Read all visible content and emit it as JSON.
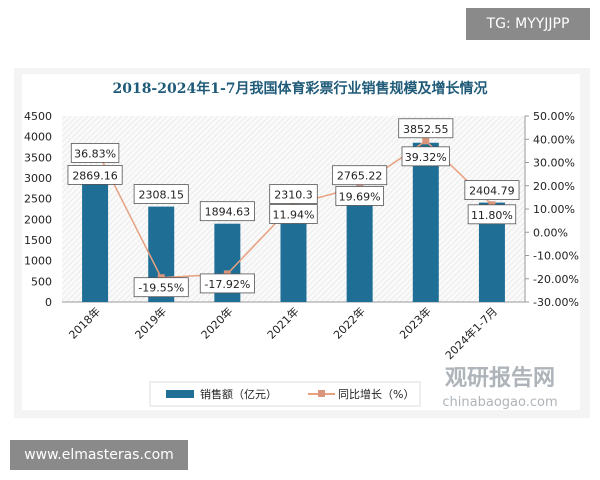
{
  "watermark_top": "TG: MYYJJPP",
  "watermark_bottom": "www.elmasteras.com",
  "logo_text": "观研报告网",
  "logo_sub": "chinabaogao.com",
  "chart_data": {
    "type": "bar+line",
    "title": "2018-2024年1-7月我国体育彩票行业销售规模及增长情况",
    "categories": [
      "2018年",
      "2019年",
      "2020年",
      "2021年",
      "2022年",
      "2023年",
      "2024年1-7月"
    ],
    "series": [
      {
        "name": "销售额（亿元）",
        "type": "bar",
        "axis": "left",
        "color": "#1f6e96",
        "values": [
          2869.16,
          2308.15,
          1894.63,
          2310.3,
          2765.22,
          3852.55,
          2404.79
        ],
        "labels": [
          "2869.16",
          "2308.15",
          "1894.63",
          "2310.3",
          "2765.22",
          "3852.55",
          "2404.79"
        ]
      },
      {
        "name": "同比增长（%）",
        "type": "line",
        "axis": "right",
        "color": "#e8a07e",
        "values": [
          36.83,
          -19.55,
          -17.92,
          11.94,
          19.69,
          39.32,
          11.8
        ],
        "labels": [
          "36.83%",
          "-19.55%",
          "-17.92%",
          "11.94%",
          "19.69%",
          "39.32%",
          "11.80%"
        ]
      }
    ],
    "y_left": {
      "range": [
        0,
        4500
      ],
      "ticks": [
        "0",
        "500",
        "1000",
        "1500",
        "2000",
        "2500",
        "3000",
        "3500",
        "4000",
        "4500"
      ]
    },
    "y_right": {
      "range": [
        -30,
        50
      ],
      "ticks": [
        "-30.00%",
        "-20.00%",
        "-10.00%",
        "0.00%",
        "10.00%",
        "20.00%",
        "30.00%",
        "40.00%",
        "50.00%"
      ]
    },
    "legend": "bottom"
  }
}
